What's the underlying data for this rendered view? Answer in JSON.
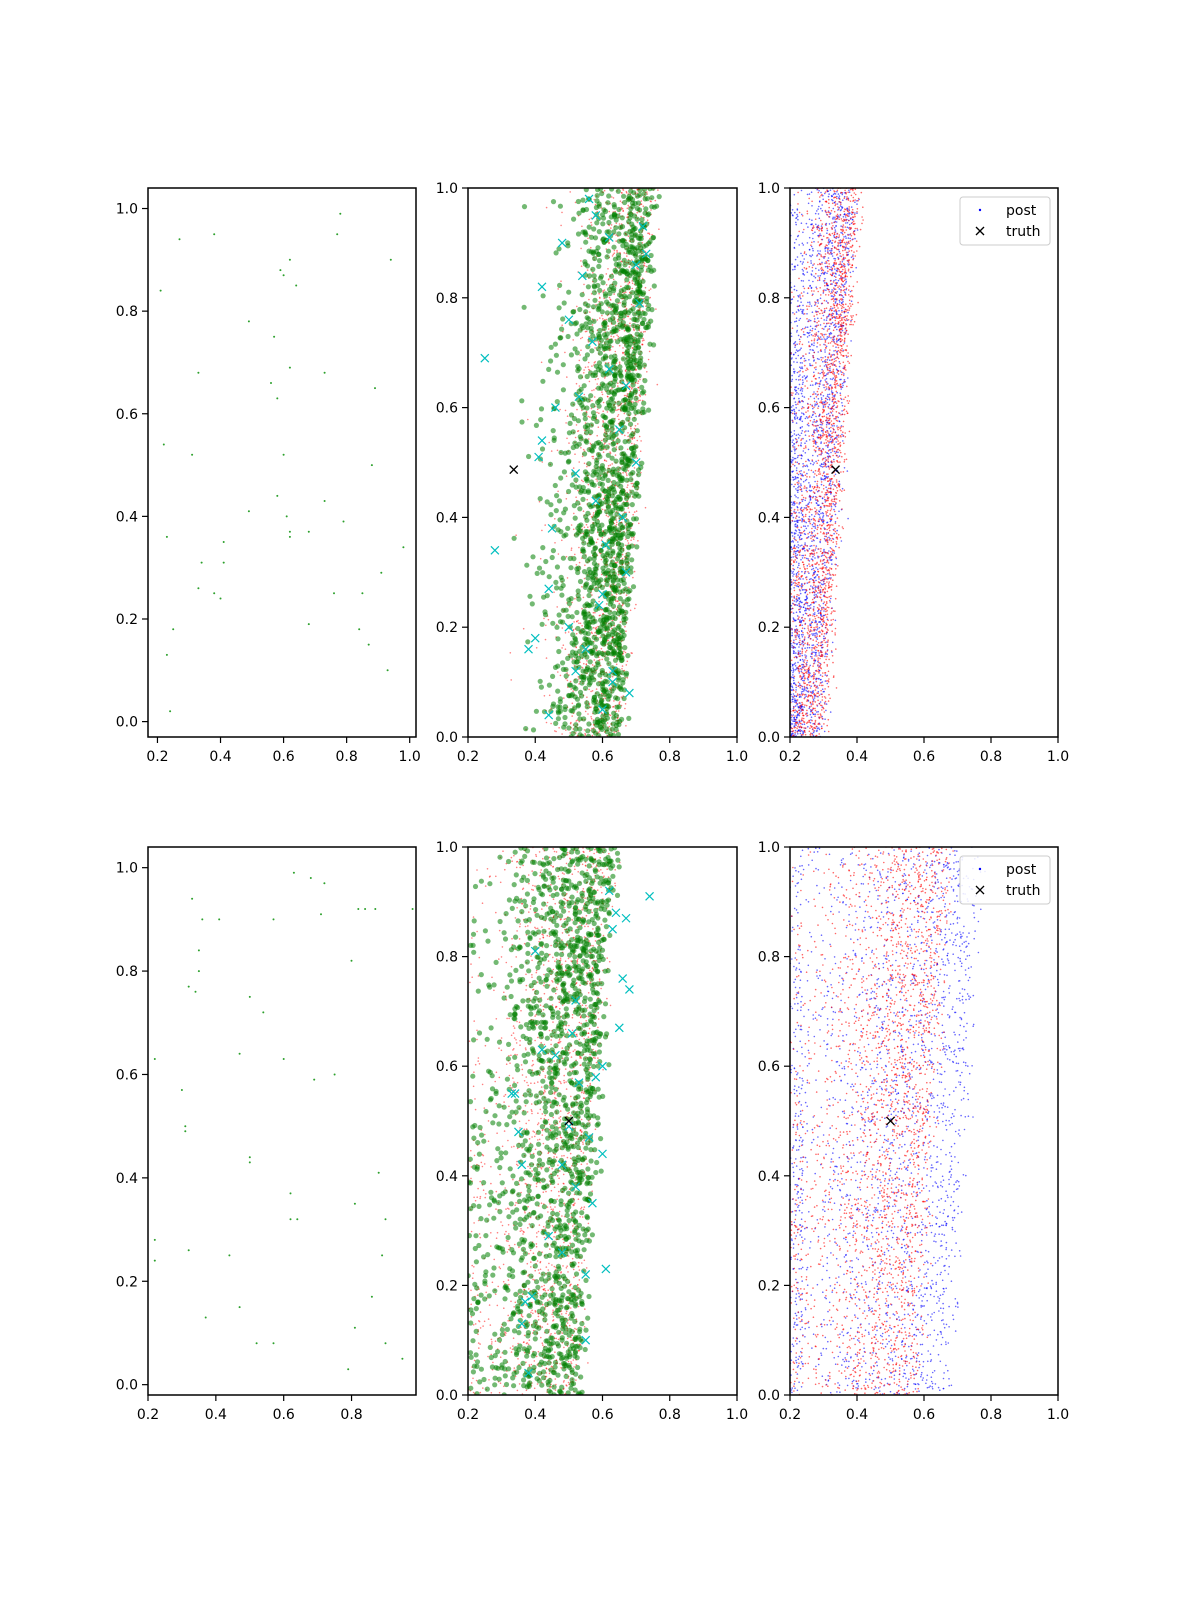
{
  "figure": {
    "background": "#ffffff"
  },
  "colors": {
    "scatter": "#2ca02c",
    "samples_green": "#008000",
    "samples_red": "#ff0000",
    "samples_blue": "#0000ff",
    "markers_cyan": "#00bfbf",
    "truth": "#000000"
  },
  "chart_data": [
    {
      "id": "top-left",
      "type": "scatter",
      "xlim": [
        0.17,
        1.02
      ],
      "ylim": [
        -0.03,
        1.04
      ],
      "xticks": [
        0.2,
        0.4,
        0.6,
        0.8,
        1.0
      ],
      "yticks": [
        0.0,
        0.2,
        0.4,
        0.6,
        0.8,
        1.0
      ],
      "xtick_labels": [
        "0.2",
        "0.4",
        "0.6",
        "0.8",
        "1.0"
      ],
      "ytick_labels": [
        "0.0",
        "0.2",
        "0.4",
        "0.6",
        "0.8",
        "1.0"
      ],
      "grid": false,
      "series": [
        {
          "x": [
            0.21,
            0.22,
            0.23,
            0.23,
            0.24,
            0.25,
            0.27,
            0.31,
            0.33,
            0.33,
            0.34,
            0.38,
            0.38,
            0.4,
            0.41,
            0.41,
            0.49,
            0.49,
            0.56,
            0.57,
            0.58,
            0.58,
            0.59,
            0.6,
            0.6,
            0.61,
            0.62,
            0.62,
            0.62,
            0.62,
            0.64,
            0.68,
            0.68,
            0.73,
            0.73,
            0.76,
            0.77,
            0.78,
            0.79,
            0.84,
            0.85,
            0.87,
            0.88,
            0.89,
            0.91,
            0.93,
            0.94,
            0.98
          ],
          "y": [
            0.84,
            0.54,
            0.36,
            0.13,
            0.02,
            0.18,
            0.94,
            0.52,
            0.26,
            0.68,
            0.31,
            0.25,
            0.95,
            0.24,
            0.35,
            0.31,
            0.78,
            0.41,
            0.66,
            0.75,
            0.63,
            0.44,
            0.88,
            0.52,
            0.87,
            0.4,
            0.37,
            0.9,
            0.69,
            0.36,
            0.85,
            0.19,
            0.37,
            0.43,
            0.68,
            0.25,
            0.95,
            0.99,
            0.39,
            0.18,
            0.25,
            0.15,
            0.5,
            0.65,
            0.29,
            0.1,
            0.9,
            0.34
          ]
        }
      ]
    },
    {
      "id": "top-middle",
      "type": "scatter",
      "xlim": [
        0.2,
        1.0
      ],
      "ylim": [
        0.0,
        1.0
      ],
      "xticks": [
        0.2,
        0.4,
        0.6,
        0.8,
        1.0
      ],
      "yticks": [
        0.0,
        0.2,
        0.4,
        0.6,
        0.8,
        1.0
      ],
      "xtick_labels": [
        "0.2",
        "0.4",
        "0.6",
        "0.8",
        "1.0"
      ],
      "ytick_labels": [
        "0.0",
        "0.2",
        "0.4",
        "0.6",
        "0.8",
        "1.0"
      ],
      "grid": false,
      "clouds": [
        {
          "count": 1800,
          "x_range": [
            0.2,
            0.82
          ],
          "x_mode": 0.7,
          "skew": 0.06
        },
        {
          "count": 1600,
          "x_range": [
            0.2,
            0.85
          ],
          "x_mode": 0.7,
          "skew": 0.07
        }
      ],
      "series": [
        {
          "x": [
            0.25,
            0.28,
            0.42,
            0.41,
            0.44,
            0.4,
            0.5,
            0.52,
            0.53,
            0.54,
            0.56,
            0.58,
            0.58,
            0.6,
            0.61,
            0.62,
            0.62,
            0.63,
            0.65,
            0.67,
            0.68,
            0.7,
            0.71,
            0.72,
            0.73,
            0.66,
            0.6,
            0.57,
            0.5,
            0.46,
            0.45,
            0.55,
            0.59,
            0.63,
            0.67,
            0.7,
            0.44,
            0.38,
            0.42,
            0.48,
            0.52
          ],
          "y": [
            0.69,
            0.34,
            0.54,
            0.51,
            0.27,
            0.18,
            0.2,
            0.48,
            0.62,
            0.84,
            0.98,
            0.95,
            0.43,
            0.05,
            0.35,
            0.67,
            0.91,
            0.12,
            0.56,
            0.3,
            0.08,
            0.86,
            0.79,
            0.93,
            0.88,
            0.4,
            0.26,
            0.72,
            0.76,
            0.6,
            0.38,
            0.16,
            0.24,
            0.1,
            0.64,
            0.5,
            0.04,
            0.16,
            0.82,
            0.9,
            0.12
          ]
        }
      ],
      "truth": {
        "x": 0.336,
        "y": 0.487
      }
    },
    {
      "id": "top-right",
      "type": "scatter",
      "xlim": [
        0.2,
        1.0
      ],
      "ylim": [
        0.0,
        1.0
      ],
      "xticks": [
        0.2,
        0.4,
        0.6,
        0.8,
        1.0
      ],
      "yticks": [
        0.0,
        0.2,
        0.4,
        0.6,
        0.8,
        1.0
      ],
      "xtick_labels": [
        "0.2",
        "0.4",
        "0.6",
        "0.8",
        "1.0"
      ],
      "ytick_labels": [
        "0.0",
        "0.2",
        "0.4",
        "0.6",
        "0.8",
        "1.0"
      ],
      "grid": false,
      "clouds": [
        {
          "count": 2200,
          "x_range": [
            0.2,
            0.43
          ],
          "x_mode": 0.34,
          "skew": 0.06
        },
        {
          "count": 2200,
          "x_range": [
            0.2,
            0.42
          ],
          "x_mode": 0.35,
          "skew": 0.04
        }
      ],
      "truth": {
        "x": 0.336,
        "y": 0.487
      },
      "legend": {
        "position": "upper right",
        "entries": [
          {
            "label": "post",
            "marker": "dot"
          },
          {
            "label": "truth",
            "marker": "x"
          }
        ]
      }
    },
    {
      "id": "bottom-left",
      "type": "scatter",
      "xlim": [
        0.2,
        0.99
      ],
      "ylim": [
        -0.02,
        1.04
      ],
      "xticks": [
        0.2,
        0.4,
        0.6,
        0.8
      ],
      "yticks": [
        0.0,
        0.2,
        0.4,
        0.6,
        0.8,
        1.0
      ],
      "xtick_labels": [
        "0.2",
        "0.4",
        "0.6",
        "0.8"
      ],
      "ytick_labels": [
        "0.0",
        "0.2",
        "0.4",
        "0.6",
        "0.8",
        "1.0"
      ],
      "grid": false,
      "series": [
        {
          "x": [
            0.22,
            0.22,
            0.22,
            0.3,
            0.31,
            0.31,
            0.32,
            0.32,
            0.33,
            0.34,
            0.35,
            0.35,
            0.36,
            0.37,
            0.41,
            0.44,
            0.47,
            0.47,
            0.5,
            0.5,
            0.5,
            0.52,
            0.54,
            0.57,
            0.57,
            0.6,
            0.62,
            0.62,
            0.63,
            0.64,
            0.68,
            0.69,
            0.71,
            0.72,
            0.75,
            0.79,
            0.8,
            0.81,
            0.81,
            0.82,
            0.84,
            0.86,
            0.87,
            0.88,
            0.89,
            0.9,
            0.9,
            0.95,
            0.98
          ],
          "y": [
            0.63,
            0.28,
            0.24,
            0.57,
            0.49,
            0.5,
            0.26,
            0.77,
            0.94,
            0.76,
            0.8,
            0.84,
            0.9,
            0.13,
            0.9,
            0.25,
            0.64,
            0.15,
            0.75,
            0.43,
            0.44,
            0.08,
            0.72,
            0.9,
            0.08,
            0.63,
            0.37,
            0.32,
            0.99,
            0.32,
            0.98,
            0.59,
            0.91,
            0.97,
            0.6,
            0.03,
            0.82,
            0.11,
            0.35,
            0.92,
            0.92,
            0.17,
            0.92,
            0.41,
            0.25,
            0.32,
            0.08,
            0.05,
            0.92
          ]
        }
      ]
    },
    {
      "id": "bottom-middle",
      "type": "scatter",
      "xlim": [
        0.2,
        1.0
      ],
      "ylim": [
        0.0,
        1.0
      ],
      "xticks": [
        0.2,
        0.4,
        0.6,
        0.8,
        1.0
      ],
      "yticks": [
        0.0,
        0.2,
        0.4,
        0.6,
        0.8,
        1.0
      ],
      "xtick_labels": [
        "0.2",
        "0.4",
        "0.6",
        "0.8",
        "1.0"
      ],
      "ytick_labels": [
        "0.0",
        "0.2",
        "0.4",
        "0.6",
        "0.8",
        "1.0"
      ],
      "grid": false,
      "clouds": [
        {
          "count": 1800,
          "x_range": [
            0.2,
            0.74
          ],
          "x_mode": 0.57,
          "skew": 0.1
        },
        {
          "count": 1500,
          "x_range": [
            0.2,
            0.74
          ],
          "x_mode": 0.58,
          "skew": 0.1
        }
      ],
      "series": [
        {
          "x": [
            0.33,
            0.34,
            0.36,
            0.36,
            0.37,
            0.39,
            0.4,
            0.42,
            0.44,
            0.46,
            0.48,
            0.5,
            0.51,
            0.52,
            0.53,
            0.55,
            0.55,
            0.57,
            0.58,
            0.6,
            0.6,
            0.62,
            0.63,
            0.64,
            0.65,
            0.66,
            0.67,
            0.68,
            0.74,
            0.48,
            0.52,
            0.56,
            0.61,
            0.38,
            0.35
          ],
          "y": [
            0.55,
            0.55,
            0.42,
            0.13,
            0.17,
            0.18,
            0.81,
            0.63,
            0.29,
            0.62,
            0.42,
            0.49,
            0.66,
            0.72,
            0.57,
            0.22,
            0.1,
            0.35,
            0.58,
            0.6,
            0.44,
            0.92,
            0.85,
            0.88,
            0.67,
            0.76,
            0.87,
            0.74,
            0.91,
            0.26,
            0.38,
            0.47,
            0.23,
            0.04,
            0.48
          ]
        }
      ],
      "truth": {
        "x": 0.5,
        "y": 0.5
      }
    },
    {
      "id": "bottom-right",
      "type": "scatter",
      "xlim": [
        0.2,
        1.0
      ],
      "ylim": [
        0.0,
        1.0
      ],
      "xticks": [
        0.2,
        0.4,
        0.6,
        0.8,
        1.0
      ],
      "yticks": [
        0.0,
        0.2,
        0.4,
        0.6,
        0.8,
        1.0
      ],
      "xtick_labels": [
        "0.2",
        "0.4",
        "0.6",
        "0.8",
        "1.0"
      ],
      "ytick_labels": [
        "0.0",
        "0.2",
        "0.4",
        "0.6",
        "0.8",
        "1.0"
      ],
      "grid": false,
      "clouds": [
        {
          "count": 2200,
          "x_range": [
            0.2,
            0.83
          ],
          "x_mode": 0.72,
          "skew": 0.18
        },
        {
          "count": 2400,
          "x_range": [
            0.2,
            0.75
          ],
          "x_mode": 0.62,
          "skew": 0.12
        }
      ],
      "truth": {
        "x": 0.5,
        "y": 0.5
      },
      "legend": {
        "position": "upper right",
        "entries": [
          {
            "label": "post",
            "marker": "dot"
          },
          {
            "label": "truth",
            "marker": "x"
          }
        ]
      }
    }
  ]
}
